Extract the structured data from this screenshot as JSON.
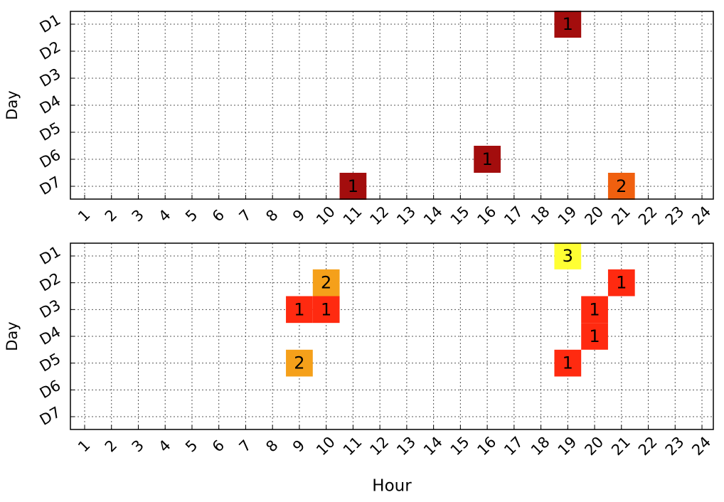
{
  "chart_data": [
    {
      "type": "heatmap",
      "y_label": "Day",
      "x_categories": [
        1,
        2,
        3,
        4,
        5,
        6,
        7,
        8,
        9,
        10,
        11,
        12,
        13,
        14,
        15,
        16,
        17,
        18,
        19,
        20,
        21,
        22,
        23,
        24
      ],
      "y_categories": [
        "D1",
        "D2",
        "D3",
        "D4",
        "D5",
        "D6",
        "D7"
      ],
      "grid": true,
      "cells": [
        {
          "x": 19,
          "y": "D1",
          "value": 1,
          "color": "#a30d0d"
        },
        {
          "x": 16,
          "y": "D6",
          "value": 1,
          "color": "#a30d0d"
        },
        {
          "x": 11,
          "y": "D7",
          "value": 1,
          "color": "#a30d0d"
        },
        {
          "x": 21,
          "y": "D7",
          "value": 2,
          "color": "#f0600f"
        }
      ]
    },
    {
      "type": "heatmap",
      "y_label": "Day",
      "x_label": "Hour",
      "x_categories": [
        1,
        2,
        3,
        4,
        5,
        6,
        7,
        8,
        9,
        10,
        11,
        12,
        13,
        14,
        15,
        16,
        17,
        18,
        19,
        20,
        21,
        22,
        23,
        24
      ],
      "y_categories": [
        "D1",
        "D2",
        "D3",
        "D4",
        "D5",
        "D6",
        "D7"
      ],
      "grid": true,
      "cells": [
        {
          "x": 19,
          "y": "D1",
          "value": 3,
          "color": "#ffff33"
        },
        {
          "x": 10,
          "y": "D2",
          "value": 2,
          "color": "#f5a01a"
        },
        {
          "x": 21,
          "y": "D2",
          "value": 1,
          "color": "#ff2a10"
        },
        {
          "x": 9,
          "y": "D3",
          "value": 1,
          "color": "#ff2a10"
        },
        {
          "x": 10,
          "y": "D3",
          "value": 1,
          "color": "#ff2a10"
        },
        {
          "x": 20,
          "y": "D3",
          "value": 1,
          "color": "#ff2a10"
        },
        {
          "x": 20,
          "y": "D4",
          "value": 1,
          "color": "#ff2a10"
        },
        {
          "x": 9,
          "y": "D5",
          "value": 2,
          "color": "#f5a01a"
        },
        {
          "x": 19,
          "y": "D5",
          "value": 1,
          "color": "#ff2a10"
        }
      ]
    }
  ]
}
